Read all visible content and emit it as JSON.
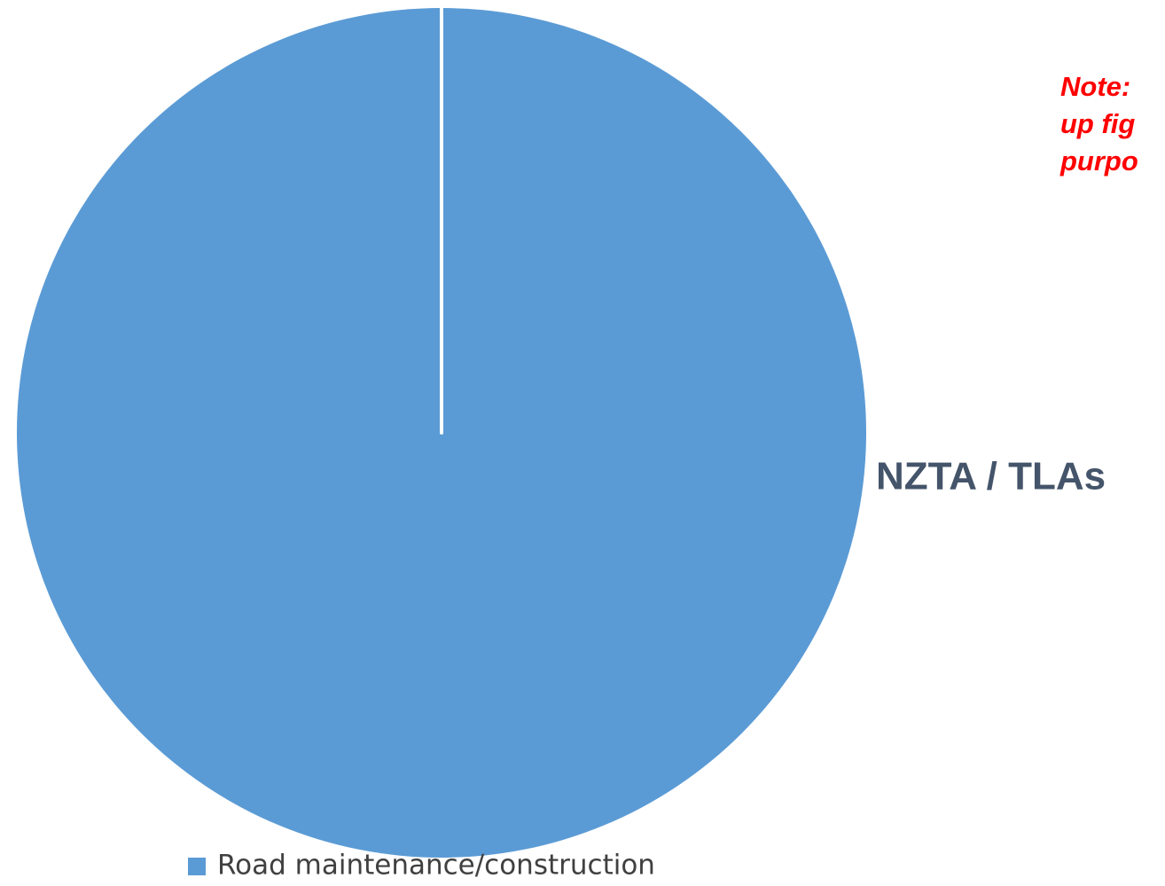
{
  "chart_data": {
    "type": "pie",
    "categories": [
      "Road maintenance/construction"
    ],
    "values": [
      100
    ],
    "colors": [
      "#5b9bd5"
    ],
    "label": "NZTA / TLAs",
    "annotation": [
      "Note:",
      "up fig",
      "purpo"
    ],
    "legend": "bottom"
  }
}
